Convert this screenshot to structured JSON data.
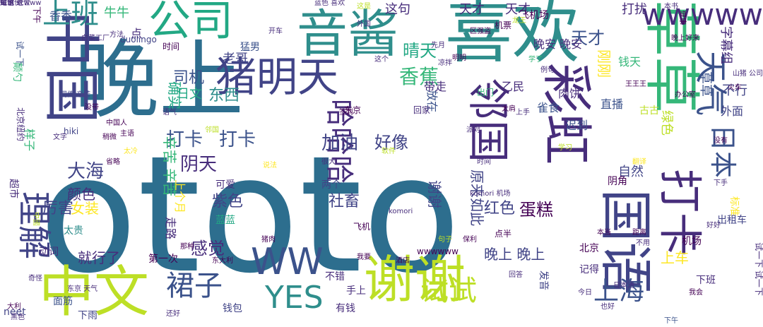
{
  "palette": {
    "teal_dark": "#2d6e8e",
    "teal": "#2f8e8c",
    "blue": "#3b528b",
    "indigo": "#414487",
    "purple": "#472d7b",
    "deep_purple": "#440154",
    "green": "#35b779",
    "lime": "#90d743",
    "yellow_green": "#bddf26",
    "yellow": "#fde725",
    "sea_green": "#22a884",
    "cyan": "#25858e"
  },
  "words": [
    {
      "text": "ototo"
    },
    {
      "text": "晚上"
    },
    {
      "text": "喜欢"
    },
    {
      "text": "音酱"
    },
    {
      "text": "中国"
    },
    {
      "text": "中文"
    },
    {
      "text": "谢谢"
    },
    {
      "text": "公司"
    },
    {
      "text": "猪明天"
    },
    {
      "text": "彩虹"
    },
    {
      "text": "草草"
    },
    {
      "text": "国语"
    },
    {
      "text": "打卡"
    },
    {
      "text": "邻国"
    },
    {
      "text": "WW"
    },
    {
      "text": "YES"
    },
    {
      "text": "wwwww"
    },
    {
      "text": "理解"
    },
    {
      "text": "上班"
    },
    {
      "text": "哈哈哈"
    },
    {
      "text": "试试"
    },
    {
      "text": "天气"
    },
    {
      "text": "日本"
    },
    {
      "text": "上海"
    },
    {
      "text": "裙子"
    },
    {
      "text": "打卡"
    },
    {
      "text": "打卡"
    },
    {
      "text": "阴天"
    },
    {
      "text": "加油"
    },
    {
      "text": "好像"
    },
    {
      "text": "香蕉"
    },
    {
      "text": "晴天"
    },
    {
      "text": "天才"
    },
    {
      "text": "天才"
    },
    {
      "text": "天才"
    },
    {
      "text": "这句"
    },
    {
      "text": "打扰"
    },
    {
      "text": "东西"
    },
    {
      "text": "司机"
    },
    {
      "text": "大海"
    },
    {
      "text": "颜色"
    },
    {
      "text": "厉害"
    },
    {
      "text": "女装"
    },
    {
      "text": "紫色"
    },
    {
      "text": "社畜"
    },
    {
      "text": "红色"
    },
    {
      "text": "蛋糕"
    },
    {
      "text": "感觉"
    },
    {
      "text": "就行了"
    },
    {
      "text": "晚上 晚上"
    },
    {
      "text": "上车"
    },
    {
      "text": "辛苦 辛苦"
    },
    {
      "text": "谢谢"
    },
    {
      "text": "原来如此"
    },
    {
      "text": "刚刚"
    },
    {
      "text": "确实"
    },
    {
      "text": "字幕组"
    },
    {
      "text": "不行"
    },
    {
      "text": "晚安 晚安"
    },
    {
      "text": "钱天"
    },
    {
      "text": "日文"
    },
    {
      "text": "老哥"
    },
    {
      "text": "飞机场"
    },
    {
      "text": "猛男"
    },
    {
      "text": "牛牛"
    },
    {
      "text": "香香"
    },
    {
      "text": "点"
    },
    {
      "text": "时间"
    },
    {
      "text": "雀食"
    },
    {
      "text": "乙民"
    },
    {
      "text": "放在"
    },
    {
      "text": "带走"
    },
    {
      "text": "肉饼"
    },
    {
      "text": "直播"
    },
    {
      "text": "绿色"
    },
    {
      "text": "迟到"
    },
    {
      "text": "草草"
    },
    {
      "text": "外面"
    },
    {
      "text": "自然"
    },
    {
      "text": "标准"
    },
    {
      "text": "出租车"
    },
    {
      "text": "机场"
    },
    {
      "text": "下班"
    },
    {
      "text": "北京"
    },
    {
      "text": "记得"
    },
    {
      "text": "不错"
    },
    {
      "text": "手上"
    },
    {
      "text": "面筋"
    },
    {
      "text": "钱包"
    },
    {
      "text": "有钱"
    },
    {
      "text": "发音"
    },
    {
      "text": "走路"
    },
    {
      "text": "第一次"
    },
    {
      "text": "蓝蓝"
    },
    {
      "text": "可爱"
    },
    {
      "text": "两个"
    },
    {
      "text": "阴角"
    },
    {
      "text": "上个月"
    },
    {
      "text": "太贵"
    },
    {
      "text": "超市"
    },
    {
      "text": "动词"
    },
    {
      "text": "neet"
    },
    {
      "text": "下雨"
    },
    {
      "text": "hiki"
    },
    {
      "text": "点半"
    },
    {
      "text": "飞机"
    },
    {
      "text": "wwwwww"
    },
    {
      "text": "duolingo"
    },
    {
      "text": "下午"
    },
    {
      "text": "试一下"
    },
    {
      "text": "颠勺"
    },
    {
      "text": "北京纽约"
    },
    {
      "text": "样子"
    },
    {
      "text": "东京"
    },
    {
      "text": "回家"
    },
    {
      "text": "出门"
    },
    {
      "text": "古古"
    },
    {
      "text": "白菜工厂"
    },
    {
      "text": "方法"
    },
    {
      "text": "开车"
    },
    {
      "text": "机票"
    },
    {
      "text": "这是"
    },
    {
      "text": "本书"
    },
    {
      "text": "健康"
    },
    {
      "text": "晚上好来"
    },
    {
      "text": "今日"
    },
    {
      "text": "日本语"
    },
    {
      "text": "中國"
    },
    {
      "text": "中国人"
    },
    {
      "text": "大利"
    },
    {
      "text": "也好"
    },
    {
      "text": "这个"
    },
    {
      "text": "回答"
    },
    {
      "text": "火车"
    },
    {
      "text": "先月"
    },
    {
      "text": "例句"
    },
    {
      "text": "学了"
    },
    {
      "text": "龙王"
    },
    {
      "text": "明明"
    },
    {
      "text": "外国"
    },
    {
      "text": "签到"
    },
    {
      "text": "同传 辛苦"
    },
    {
      "text": "没带"
    },
    {
      "text": "主语"
    },
    {
      "text": "省略"
    },
    {
      "text": "稍微"
    },
    {
      "text": "文字"
    },
    {
      "text": "太冷"
    },
    {
      "text": "说法"
    },
    {
      "text": "很大"
    },
    {
      "text": "时间"
    },
    {
      "text": "邻国"
    },
    {
      "text": "那种"
    },
    {
      "text": "猪肉"
    },
    {
      "text": "保利"
    },
    {
      "text": "酒店"
    },
    {
      "text": "我要"
    },
    {
      "text": "句子"
    },
    {
      "text": "我会"
    },
    {
      "text": "不用"
    },
    {
      "text": "下手"
    },
    {
      "text": "好好"
    },
    {
      "text": "下午"
    },
    {
      "text": "试一下 试一下"
    },
    {
      "text": "东京 天气"
    },
    {
      "text": "奇怪"
    },
    {
      "text": "还好"
    },
    {
      "text": "黑色"
    },
    {
      "text": "东大利"
    },
    {
      "text": "komori"
    },
    {
      "text": "komori 机场"
    },
    {
      "text": "学习"
    },
    {
      "text": "本当"
    },
    {
      "text": "距离"
    },
    {
      "text": "王王王"
    },
    {
      "text": "翻译"
    },
    {
      "text": "凉拌"
    },
    {
      "text": "太肩"
    },
    {
      "text": "上手"
    },
    {
      "text": "软件"
    },
    {
      "text": "语气"
    },
    {
      "text": "蓝色 喜欢"
    },
    {
      "text": "办公室"
    },
    {
      "text": "区强盗"
    },
    {
      "text": "山猪 公司"
    },
    {
      "text": "没有"
    },
    {
      "text": "派对"
    },
    {
      "text": "虹色"
    },
    {
      "text": "好家伙"
    },
    {
      "text": "试试 迸世"
    },
    {
      "text": "谢谢 scwww"
    }
  ]
}
